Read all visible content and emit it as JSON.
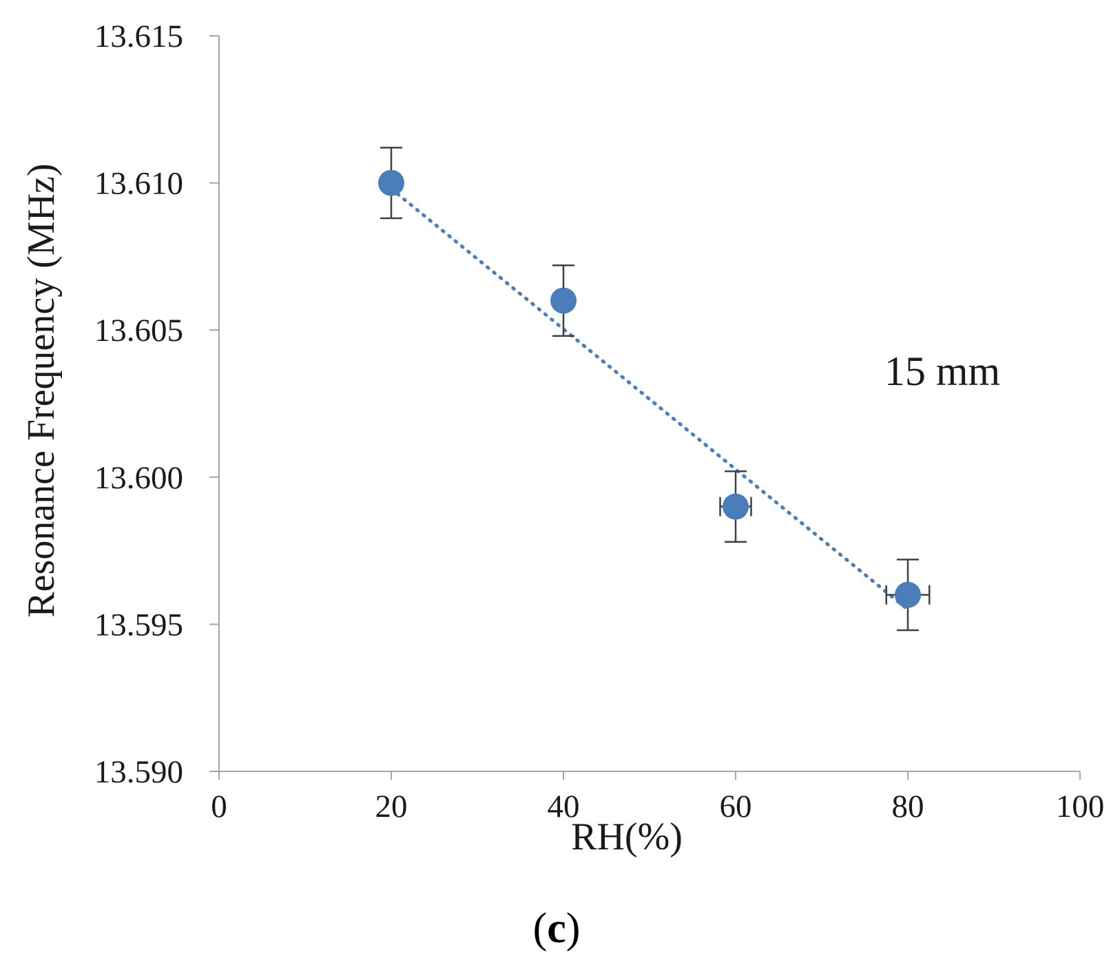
{
  "chart_data": {
    "type": "scatter",
    "title": "",
    "xlabel": "RH(%)",
    "ylabel": "Resonance Frequency (MHz)",
    "xlim": [
      0,
      100
    ],
    "ylim": [
      13.59,
      13.615
    ],
    "x_ticks": [
      0,
      20,
      40,
      60,
      80,
      100
    ],
    "x_tick_labels": [
      "0",
      "20",
      "40",
      "60",
      "80",
      "100"
    ],
    "y_ticks": [
      13.59,
      13.595,
      13.6,
      13.605,
      13.61,
      13.615
    ],
    "y_tick_labels": [
      "13.590",
      "13.595",
      "13.600",
      "13.605",
      "13.610",
      "13.615"
    ],
    "grid": false,
    "series": [
      {
        "name": "15 mm",
        "x": [
          20,
          40,
          60,
          80
        ],
        "y": [
          13.61,
          13.606,
          13.599,
          13.596
        ],
        "y_error": [
          0.0012,
          0.0012,
          0.0012,
          0.0012
        ],
        "x_error": [
          0,
          0.8,
          1.8,
          2.5
        ],
        "marker_color": "#4a7ebb",
        "trendline": {
          "style": "dotted",
          "color": "#4a7ebb",
          "from": [
            20,
            13.6098
          ],
          "to": [
            80,
            13.5955
          ]
        }
      }
    ],
    "annotations": [
      {
        "text": "15 mm",
        "x": 84,
        "y": 13.6036
      }
    ],
    "axis_color": "#a6a6a6",
    "errorbar_color": "#404040"
  },
  "panel_label": {
    "open": "(",
    "letter": "c",
    "close": ")"
  }
}
